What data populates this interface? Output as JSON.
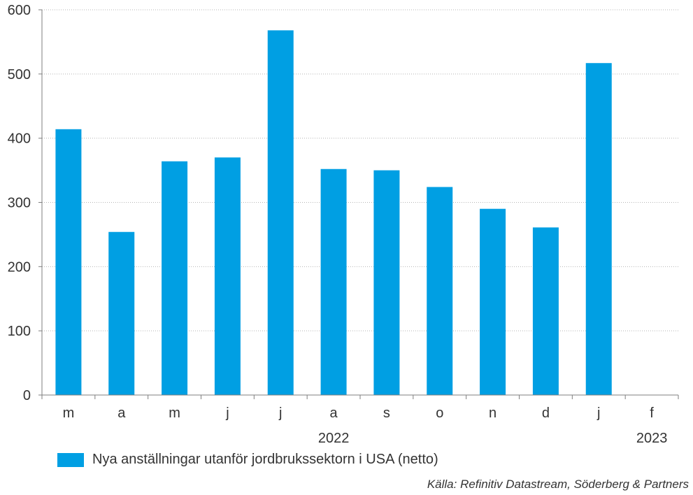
{
  "chart_data": {
    "type": "bar",
    "categories": [
      "m",
      "a",
      "m",
      "j",
      "j",
      "a",
      "s",
      "o",
      "n",
      "d",
      "j",
      "f"
    ],
    "year_labels": [
      {
        "label": "2022",
        "category_index": 5
      },
      {
        "label": "2023",
        "category_index": 11
      }
    ],
    "series": [
      {
        "name": "Nya anställningar utanför jordbrukssektorn i USA (netto)",
        "values": [
          414,
          254,
          364,
          370,
          568,
          352,
          350,
          324,
          290,
          261,
          517,
          null
        ],
        "color": "#009fe3"
      }
    ],
    "yticks": [
      0,
      100,
      200,
      300,
      400,
      500,
      600
    ],
    "ylim": [
      0,
      600
    ],
    "grid": true,
    "legend_position": "bottom-left"
  },
  "source": "Källa: Refinitiv Datastream, Söderberg & Partners"
}
